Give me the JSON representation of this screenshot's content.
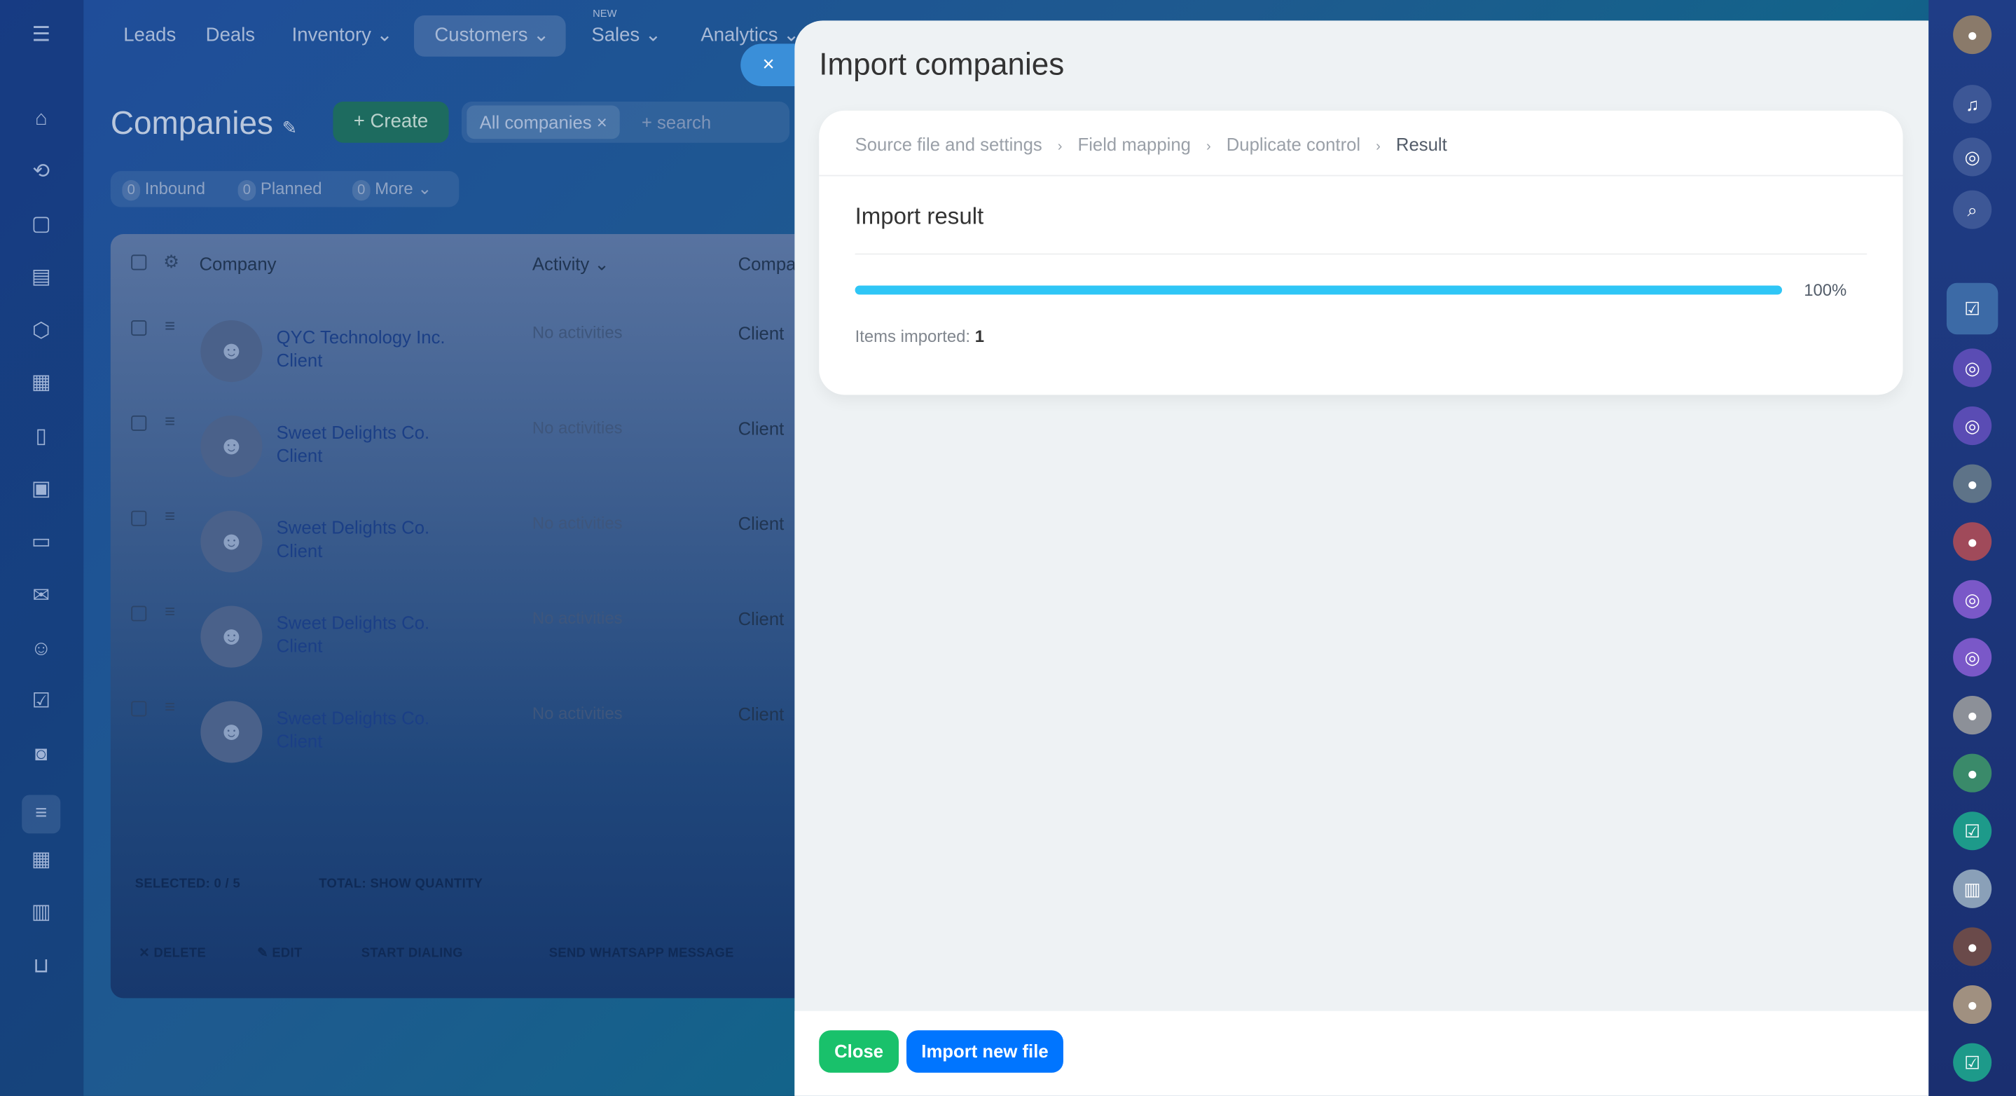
{
  "nav": {
    "items": [
      "Leads",
      "Deals",
      "Inventory ⌄",
      "Customers ⌄",
      "Sales ⌄",
      "Analytics ⌄"
    ],
    "new_badge": "NEW"
  },
  "page": {
    "title": "Companies",
    "create": "Create",
    "filter_chip": "All companies",
    "search_placeholder": "+ search"
  },
  "counters": [
    {
      "count": "0",
      "label": "Inbound"
    },
    {
      "count": "0",
      "label": "Planned"
    },
    {
      "count": "0",
      "label": "More"
    }
  ],
  "table": {
    "headers": [
      "Company",
      "Activity ⌄",
      "Compa"
    ],
    "rows": [
      {
        "name": "QYC Technology Inc.",
        "type": "Client",
        "activity": "No activities",
        "company_type": "Client"
      },
      {
        "name": "Sweet Delights Co.",
        "type": "Client",
        "activity": "No activities",
        "company_type": "Client"
      },
      {
        "name": "Sweet Delights Co.",
        "type": "Client",
        "activity": "No activities",
        "company_type": "Client"
      },
      {
        "name": "Sweet Delights Co.",
        "type": "Client",
        "activity": "No activities",
        "company_type": "Client"
      },
      {
        "name": "Sweet Delights Co.",
        "type": "Client",
        "activity": "No activities",
        "company_type": "Client"
      }
    ],
    "selected": "SELECTED: 0 / 5",
    "total": "TOTAL: SHOW QUANTITY",
    "actions": [
      "✕ DELETE",
      "✎ EDIT",
      "START DIALING",
      "SEND WHATSAPP MESSAGE"
    ]
  },
  "modal": {
    "title": "Import companies",
    "steps": [
      "Source file and settings",
      "Field mapping",
      "Duplicate control",
      "Result"
    ],
    "section_title": "Import result",
    "progress_percent": 100,
    "progress_label": "100%",
    "items_label": "Items imported:",
    "items_value": "1",
    "close": "Close",
    "import_new": "Import new file",
    "close_icon": "×"
  },
  "colors": {
    "progress": "#2fc6f6",
    "close_button": "#19c16b",
    "primary_button": "#0075ff"
  }
}
